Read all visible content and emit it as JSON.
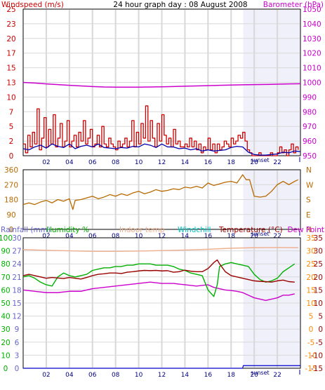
{
  "title": "24 hour graph day : 08 August 2008",
  "hour_labels": [
    "02",
    "04",
    "06",
    "08",
    "10",
    "12",
    "14",
    "16",
    "18",
    "20",
    "22"
  ],
  "sunset_label": "sunset",
  "colors": {
    "windspeed": "#cc0000",
    "barometer": "#cc00cc",
    "wind_avg": "#0000aa",
    "direction": "#b86a00",
    "rainfall": "#6666cc",
    "humidity": "#00b000",
    "indoor_temp": "#f0b090",
    "windchill": "#00c8c8",
    "temperature": "#990000",
    "dewpoint": "#cc00cc",
    "temp_axis": "#ff8a00",
    "grid": "#d8d8d8",
    "night": "#f0f0fa"
  },
  "chart_data": [
    {
      "type": "line",
      "title": "24 hour graph day : 08 August 2008",
      "axes": {
        "left": {
          "label": "Windspeed (m/s)",
          "ticks": [
            "0",
            "2",
            "5",
            "7",
            "10",
            "13",
            "15",
            "17",
            "20",
            "23",
            "25"
          ],
          "range": [
            0,
            25
          ]
        },
        "right": {
          "label": "Barometer (hPa)",
          "ticks": [
            "950",
            "960",
            "970",
            "980",
            "990",
            "1000",
            "1010",
            "1020",
            "1030",
            "1040",
            "1050"
          ],
          "range": [
            950,
            1050
          ]
        },
        "x": {
          "range": [
            0,
            24
          ],
          "unit": "hour"
        }
      },
      "series": [
        {
          "name": "Windspeed (m/s)",
          "x": [
            0.0,
            0.2,
            0.4,
            0.6,
            0.8,
            1.0,
            1.2,
            1.4,
            1.6,
            1.8,
            2.0,
            2.2,
            2.4,
            2.6,
            2.8,
            3.0,
            3.2,
            3.4,
            3.6,
            3.8,
            4.0,
            4.2,
            4.4,
            4.6,
            4.8,
            5.0,
            5.2,
            5.4,
            5.6,
            5.8,
            6.0,
            6.2,
            6.4,
            6.6,
            6.8,
            7.0,
            7.2,
            7.4,
            7.6,
            7.8,
            8.0,
            8.2,
            8.4,
            8.6,
            8.8,
            9.0,
            9.2,
            9.4,
            9.6,
            9.8,
            10.0,
            10.2,
            10.4,
            10.6,
            10.8,
            11.0,
            11.2,
            11.4,
            11.6,
            11.8,
            12.0,
            12.2,
            12.4,
            12.6,
            12.8,
            13.0,
            13.2,
            13.4,
            13.6,
            13.8,
            14.0,
            14.2,
            14.4,
            14.6,
            14.8,
            15.0,
            15.2,
            15.4,
            15.6,
            15.8,
            16.0,
            16.2,
            16.4,
            16.6,
            16.8,
            17.0,
            17.2,
            17.4,
            17.6,
            17.8,
            18.0,
            18.2,
            18.4,
            18.6,
            18.8,
            19.0,
            19.2,
            19.4,
            19.6,
            19.8,
            20.0,
            20.2,
            20.4,
            20.6,
            20.8,
            21.0,
            21.2,
            21.4,
            21.6,
            21.8,
            22.0,
            22.2,
            22.4,
            22.6,
            22.8,
            23.0,
            23.2,
            23.4,
            23.6,
            23.8
          ],
          "values": [
            2.0,
            0.5,
            3.5,
            1.5,
            4.0,
            2.0,
            8.0,
            1.0,
            3.0,
            6.5,
            1.5,
            4.5,
            2.0,
            7.0,
            1.5,
            3.0,
            5.5,
            1.5,
            2.5,
            6.0,
            1.5,
            2.5,
            3.5,
            1.5,
            4.0,
            2.5,
            6.0,
            2.0,
            3.0,
            4.5,
            1.5,
            2.0,
            3.5,
            1.5,
            5.0,
            2.0,
            1.5,
            3.0,
            2.0,
            1.5,
            1.0,
            2.5,
            1.5,
            2.0,
            3.0,
            1.5,
            2.5,
            6.0,
            1.5,
            4.0,
            2.0,
            5.5,
            3.0,
            8.5,
            2.5,
            6.0,
            3.0,
            1.5,
            5.5,
            2.5,
            7.0,
            3.5,
            2.0,
            3.0,
            1.5,
            4.5,
            2.0,
            2.5,
            1.5,
            1.5,
            2.0,
            1.5,
            3.0,
            1.5,
            2.5,
            1.0,
            2.0,
            0.5,
            1.5,
            1.0,
            3.0,
            1.0,
            2.0,
            0.5,
            2.0,
            1.0,
            1.5,
            2.5,
            2.0,
            1.5,
            3.0,
            2.0,
            2.5,
            3.5,
            3.0,
            4.0,
            2.5,
            1.0,
            0.5,
            0.0,
            0.0,
            0.0,
            0.5,
            0.0,
            0.0,
            0.0,
            0.0,
            0.5,
            0.0,
            0.0,
            0.5,
            1.5,
            0.5,
            1.0,
            0.0,
            1.0,
            2.0,
            0.5,
            1.5,
            1.0
          ]
        },
        {
          "name": "Average windspeed",
          "x": [
            0.0,
            0.5,
            1.0,
            1.5,
            2.0,
            2.5,
            3.0,
            3.5,
            4.0,
            4.5,
            5.0,
            5.5,
            6.0,
            6.5,
            7.0,
            7.5,
            8.0,
            8.5,
            9.0,
            9.5,
            10.0,
            10.5,
            11.0,
            11.5,
            12.0,
            12.5,
            13.0,
            13.5,
            14.0,
            14.5,
            15.0,
            15.5,
            16.0,
            16.5,
            17.0,
            17.5,
            18.0,
            18.5,
            19.0,
            19.5,
            20.0,
            20.5,
            21.0,
            21.5,
            22.0,
            22.5,
            23.0,
            23.5,
            24.0
          ],
          "values": [
            1.2,
            1.0,
            1.5,
            1.8,
            1.3,
            2.0,
            1.6,
            1.4,
            2.0,
            1.2,
            1.6,
            1.8,
            1.5,
            2.0,
            1.4,
            1.3,
            1.2,
            1.4,
            1.3,
            1.6,
            1.5,
            2.0,
            1.8,
            1.4,
            2.0,
            1.5,
            1.5,
            1.2,
            1.3,
            1.0,
            1.2,
            0.8,
            1.0,
            0.8,
            0.9,
            1.0,
            1.4,
            1.6,
            1.5,
            0.6,
            0.2,
            0.1,
            0.1,
            0.2,
            0.3,
            0.6,
            0.5,
            0.8,
            0.7
          ]
        },
        {
          "name": "Barometer (hPa)",
          "x": [
            0,
            1,
            2,
            3,
            4,
            5,
            6,
            7,
            8,
            9,
            10,
            11,
            12,
            13,
            14,
            15,
            16,
            17,
            18,
            19,
            20,
            21,
            22,
            23,
            24
          ],
          "values": [
            1000.0,
            999.6,
            999.0,
            998.5,
            998.0,
            997.6,
            997.2,
            996.9,
            996.8,
            996.8,
            996.8,
            996.9,
            997.0,
            997.2,
            997.4,
            997.6,
            997.8,
            998.0,
            998.2,
            998.4,
            998.5,
            998.6,
            998.8,
            999.0,
            999.1
          ]
        }
      ]
    },
    {
      "type": "line",
      "axes": {
        "left": {
          "ticks": [
            "360",
            "270",
            "180",
            "90",
            "0"
          ],
          "range": [
            0,
            360
          ]
        },
        "right": {
          "ticks": [
            "N",
            "W",
            "S",
            "E",
            "N"
          ]
        },
        "x": {
          "range": [
            0,
            24
          ],
          "unit": "hour"
        }
      },
      "series": [
        {
          "name": "Wind direction (degrees)",
          "x": [
            0.0,
            0.5,
            1.0,
            1.5,
            2.0,
            2.5,
            3.0,
            3.5,
            4.0,
            4.3,
            4.5,
            5.0,
            5.5,
            6.0,
            6.5,
            7.0,
            7.5,
            8.0,
            8.5,
            9.0,
            9.5,
            10.0,
            10.5,
            11.0,
            11.5,
            12.0,
            12.5,
            13.0,
            13.5,
            14.0,
            14.5,
            15.0,
            15.5,
            16.0,
            16.5,
            17.0,
            17.5,
            18.0,
            18.5,
            19.0,
            19.3,
            19.6,
            20.0,
            20.5,
            21.0,
            21.5,
            22.0,
            22.5,
            23.0,
            23.5,
            23.8
          ],
          "values": [
            150,
            160,
            150,
            165,
            175,
            160,
            180,
            170,
            185,
            120,
            175,
            180,
            190,
            200,
            185,
            195,
            210,
            200,
            215,
            205,
            220,
            230,
            215,
            225,
            240,
            230,
            235,
            245,
            240,
            255,
            250,
            260,
            250,
            280,
            265,
            275,
            285,
            290,
            280,
            330,
            300,
            300,
            200,
            195,
            200,
            230,
            270,
            290,
            270,
            290,
            300
          ]
        }
      ]
    },
    {
      "type": "line",
      "axes": {
        "left_rain": {
          "label": "Rainfall (mm)",
          "ticks": [
            "0",
            "3",
            "6",
            "9",
            "12",
            "15",
            "18",
            "21",
            "24",
            "27",
            "30"
          ]
        },
        "left_humidity": {
          "label": "Humidity %",
          "ticks": [
            "0",
            "10",
            "20",
            "30",
            "40",
            "50",
            "60",
            "70",
            "80",
            "90",
            "100"
          ]
        },
        "right_temp": {
          "label": "Temperature (°C)",
          "ticks": [
            "35",
            "30",
            "25",
            "20",
            "15",
            "10",
            "5",
            "0",
            "-5",
            "-10",
            "-15"
          ],
          "range": [
            -15,
            35
          ]
        },
        "right_dew": {
          "ticks": [
            "35",
            "30",
            "25",
            "20",
            "15",
            "10",
            "5",
            "0",
            "-5",
            "-10",
            "-15"
          ]
        },
        "x": {
          "range": [
            0,
            24
          ],
          "unit": "hour"
        }
      },
      "labels": [
        "Rainfall (mm)",
        "Humidity %",
        "Indoor temp",
        "Windchill",
        "Temperature (°C)",
        "Dew Point"
      ],
      "series": [
        {
          "name": "Humidity %",
          "x": [
            0.0,
            0.5,
            1.0,
            1.5,
            2.0,
            2.5,
            3.0,
            3.5,
            4.0,
            4.5,
            5.0,
            5.5,
            6.0,
            6.5,
            7.0,
            7.5,
            8.0,
            8.5,
            9.0,
            9.5,
            10.0,
            10.5,
            11.0,
            11.5,
            12.0,
            12.5,
            13.0,
            13.5,
            14.0,
            14.5,
            15.0,
            15.5,
            16.0,
            16.5,
            16.8,
            17.0,
            17.5,
            18.0,
            18.5,
            19.0,
            19.5,
            20.0,
            20.5,
            21.0,
            21.5,
            22.0,
            22.5,
            23.0,
            23.5
          ],
          "values": [
            70,
            71,
            69,
            66,
            64,
            63,
            70,
            73,
            71,
            70,
            71,
            72,
            75,
            76,
            77,
            77,
            78,
            78,
            79,
            79,
            80,
            80,
            80,
            79,
            79,
            79,
            78,
            76,
            75,
            73,
            72,
            71,
            60,
            55,
            64,
            78,
            80,
            81,
            80,
            79,
            78,
            72,
            68,
            66,
            67,
            69,
            74,
            77,
            80
          ]
        },
        {
          "name": "Indoor temp",
          "x": [
            0,
            2,
            4,
            6,
            8,
            10,
            12,
            14,
            16,
            18,
            20,
            22,
            23.8
          ],
          "values": [
            30.5,
            30.2,
            30.0,
            29.8,
            29.8,
            29.9,
            30.1,
            30.3,
            30.6,
            31.0,
            31.2,
            31.3,
            31.2
          ]
        },
        {
          "name": "Temperature (°C)",
          "x": [
            0.0,
            0.5,
            1.0,
            1.5,
            2.0,
            2.5,
            3.0,
            3.5,
            4.0,
            4.5,
            5.0,
            5.5,
            6.0,
            6.5,
            7.0,
            7.5,
            8.0,
            8.5,
            9.0,
            9.5,
            10.0,
            10.5,
            11.0,
            11.5,
            12.0,
            12.5,
            13.0,
            13.5,
            14.0,
            14.5,
            15.0,
            15.5,
            16.0,
            16.5,
            16.8,
            17.0,
            17.5,
            18.0,
            18.5,
            19.0,
            19.5,
            20.0,
            20.5,
            21.0,
            21.5,
            22.0,
            22.5,
            23.0,
            23.5
          ],
          "values": [
            20.5,
            21.0,
            20.5,
            20.0,
            19.5,
            19.8,
            19.6,
            19.4,
            19.8,
            19.5,
            19.2,
            19.8,
            20.5,
            21.0,
            21.2,
            21.5,
            21.5,
            21.3,
            21.8,
            22.0,
            22.3,
            22.5,
            22.4,
            22.5,
            22.3,
            22.4,
            21.8,
            22.0,
            22.6,
            22.2,
            22.0,
            22.0,
            23.2,
            25.5,
            26.5,
            25.0,
            22.0,
            20.5,
            20.0,
            19.5,
            19.0,
            18.5,
            18.3,
            18.2,
            18.0,
            18.5,
            18.8,
            18.2,
            18.0
          ]
        },
        {
          "name": "Dew Point",
          "x": [
            0.0,
            1.0,
            2.0,
            3.0,
            4.0,
            5.0,
            6.0,
            7.0,
            8.0,
            9.0,
            10.0,
            11.0,
            12.0,
            13.0,
            14.0,
            15.0,
            16.0,
            16.5,
            17.0,
            17.5,
            18.0,
            18.5,
            19.0,
            19.5,
            20.0,
            20.5,
            21.0,
            21.5,
            22.0,
            22.5,
            23.0,
            23.5
          ],
          "values": [
            15.0,
            14.5,
            14.0,
            14.0,
            14.5,
            14.5,
            15.5,
            16.0,
            16.5,
            17.0,
            17.5,
            18.0,
            17.5,
            17.5,
            17.0,
            16.5,
            17.0,
            16.0,
            15.5,
            15.0,
            14.8,
            14.5,
            14.0,
            13.0,
            12.0,
            11.5,
            11.0,
            11.5,
            12.0,
            13.0,
            13.0,
            13.5
          ]
        },
        {
          "name": "Rainfall (mm)",
          "x": [
            0,
            19,
            19.05,
            24
          ],
          "values": [
            0.0,
            0.0,
            0.6,
            0.6
          ]
        }
      ]
    }
  ]
}
